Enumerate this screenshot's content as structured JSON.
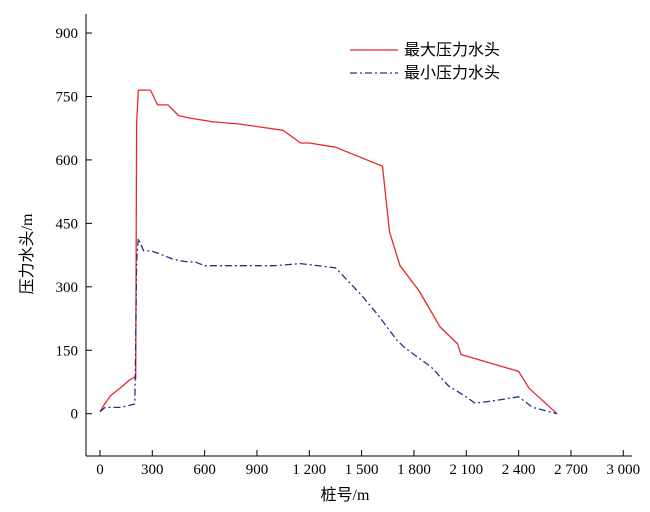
{
  "chart_data": {
    "type": "line",
    "xlabel": "桩号/m",
    "ylabel": "压力水头/m",
    "xlim": [
      -80,
      3050
    ],
    "ylim": [
      -100,
      945
    ],
    "xticks": [
      0,
      300,
      600,
      900,
      1200,
      1500,
      1800,
      2100,
      2400,
      2700,
      3000
    ],
    "xtick_labels": [
      "0",
      "300",
      "600",
      "900",
      "1 200",
      "1 500",
      "1 800",
      "2 100",
      "2 400",
      "2 700",
      "3 000"
    ],
    "yticks": [
      0,
      150,
      300,
      450,
      600,
      750,
      900
    ],
    "ytick_labels": [
      "0",
      "150",
      "300",
      "450",
      "600",
      "750",
      "900"
    ],
    "grid": false,
    "legend_position": "top-right",
    "series": [
      {
        "name": "最大压力水头",
        "color": "#e8282d",
        "style": "solid",
        "x": [
          0,
          30,
          60,
          120,
          170,
          200,
          205,
          210,
          220,
          290,
          330,
          390,
          450,
          500,
          650,
          800,
          1050,
          1150,
          1200,
          1350,
          1620,
          1660,
          1720,
          1830,
          1950,
          2050,
          2070,
          2400,
          2460,
          2620
        ],
        "y": [
          5,
          25,
          42,
          62,
          80,
          87,
          82,
          685,
          765,
          765,
          730,
          730,
          705,
          700,
          690,
          685,
          670,
          640,
          640,
          630,
          585,
          430,
          350,
          290,
          205,
          165,
          140,
          100,
          60,
          0
        ]
      },
      {
        "name": "最小压力水头",
        "color": "#2c2c8c",
        "style": "dashdot",
        "x": [
          0,
          30,
          120,
          190,
          200,
          205,
          210,
          220,
          250,
          290,
          330,
          420,
          480,
          550,
          600,
          800,
          1000,
          1150,
          1350,
          1500,
          1600,
          1700,
          1750,
          1900,
          2000,
          2080,
          2150,
          2250,
          2400,
          2480,
          2620
        ],
        "y": [
          5,
          15,
          15,
          22,
          23,
          165,
          360,
          415,
          385,
          385,
          380,
          365,
          360,
          358,
          350,
          350,
          350,
          355,
          345,
          280,
          230,
          175,
          155,
          110,
          65,
          45,
          25,
          30,
          40,
          15,
          0
        ]
      }
    ]
  }
}
